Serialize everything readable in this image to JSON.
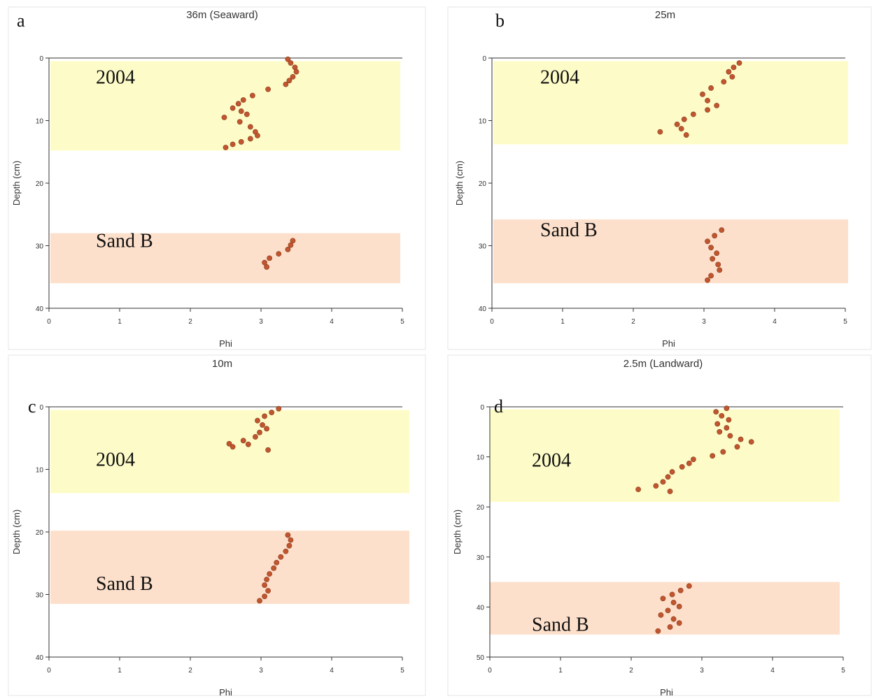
{
  "colors": {
    "band_2004": "#fdfcc8",
    "band_sand_b": "#fde0cb",
    "point_fill": "#c0562f",
    "point_stroke": "#8a3b1e"
  },
  "chart_data": [
    {
      "type": "scatter",
      "letter": "a",
      "title": "36m (Seaward)",
      "xlabel": "Phi",
      "ylabel": "Depth (cm)",
      "xlim": [
        0,
        5
      ],
      "ylim": [
        0,
        40
      ],
      "y_inverted": true,
      "xticks": [
        "0",
        "1",
        "2",
        "3",
        "4",
        "5"
      ],
      "yticks": [
        "0",
        "10",
        "20",
        "30",
        "40"
      ],
      "bands": [
        {
          "label": "2004",
          "from": 0.5,
          "to": 14.8,
          "color_key": "band_2004"
        },
        {
          "label": "Sand B",
          "from": 28.0,
          "to": 36.0,
          "color_key": "band_sand_b"
        }
      ],
      "points": [
        [
          3.38,
          0.2
        ],
        [
          3.42,
          0.8
        ],
        [
          3.48,
          1.5
        ],
        [
          3.5,
          2.2
        ],
        [
          3.45,
          3.0
        ],
        [
          3.4,
          3.6
        ],
        [
          3.35,
          4.2
        ],
        [
          3.1,
          5.0
        ],
        [
          2.88,
          6.0
        ],
        [
          2.75,
          6.7
        ],
        [
          2.68,
          7.3
        ],
        [
          2.6,
          8.0
        ],
        [
          2.72,
          8.5
        ],
        [
          2.8,
          9.0
        ],
        [
          2.48,
          9.5
        ],
        [
          2.7,
          10.2
        ],
        [
          2.85,
          11.0
        ],
        [
          2.92,
          11.8
        ],
        [
          2.95,
          12.4
        ],
        [
          2.85,
          12.9
        ],
        [
          2.72,
          13.4
        ],
        [
          2.6,
          13.8
        ],
        [
          2.5,
          14.3
        ],
        [
          3.45,
          29.2
        ],
        [
          3.42,
          29.9
        ],
        [
          3.38,
          30.6
        ],
        [
          3.25,
          31.3
        ],
        [
          3.12,
          32.0
        ],
        [
          3.05,
          32.7
        ],
        [
          3.08,
          33.4
        ]
      ]
    },
    {
      "type": "scatter",
      "letter": "b",
      "title": "25m",
      "xlabel": "Phi",
      "ylabel": "Depth (cm)",
      "xlim": [
        0,
        5
      ],
      "ylim": [
        0,
        40
      ],
      "y_inverted": true,
      "xticks": [
        "0",
        "1",
        "2",
        "3",
        "4",
        "5"
      ],
      "yticks": [
        "0",
        "10",
        "20",
        "30",
        "40"
      ],
      "bands": [
        {
          "label": "2004",
          "from": 0.5,
          "to": 13.8,
          "color_key": "band_2004"
        },
        {
          "label": "Sand B",
          "from": 25.8,
          "to": 36.0,
          "color_key": "band_sand_b"
        }
      ],
      "points": [
        [
          3.5,
          0.8
        ],
        [
          3.42,
          1.5
        ],
        [
          3.35,
          2.2
        ],
        [
          3.4,
          3.0
        ],
        [
          3.28,
          3.8
        ],
        [
          3.1,
          4.8
        ],
        [
          2.98,
          5.8
        ],
        [
          3.05,
          6.8
        ],
        [
          3.18,
          7.6
        ],
        [
          3.05,
          8.3
        ],
        [
          2.85,
          9.0
        ],
        [
          2.72,
          9.8
        ],
        [
          2.62,
          10.6
        ],
        [
          2.68,
          11.3
        ],
        [
          2.38,
          11.8
        ],
        [
          2.75,
          12.3
        ],
        [
          3.25,
          27.5
        ],
        [
          3.15,
          28.4
        ],
        [
          3.05,
          29.3
        ],
        [
          3.1,
          30.3
        ],
        [
          3.18,
          31.2
        ],
        [
          3.12,
          32.1
        ],
        [
          3.2,
          33.0
        ],
        [
          3.22,
          33.9
        ],
        [
          3.1,
          34.8
        ],
        [
          3.05,
          35.5
        ]
      ]
    },
    {
      "type": "scatter",
      "letter": "c",
      "title": "10m",
      "xlabel": "Phi",
      "ylabel": "Depth (cm)",
      "xlim": [
        0,
        5
      ],
      "ylim": [
        0,
        40
      ],
      "y_inverted": true,
      "xticks": [
        "0",
        "1",
        "2",
        "3",
        "4",
        "5"
      ],
      "yticks": [
        "0",
        "10",
        "20",
        "30",
        "40"
      ],
      "bands": [
        {
          "label": "2004",
          "from": 0.5,
          "to": 13.8,
          "color_key": "band_2004"
        },
        {
          "label": "Sand B",
          "from": 19.8,
          "to": 31.5,
          "color_key": "band_sand_b"
        }
      ],
      "points": [
        [
          3.25,
          0.3
        ],
        [
          3.15,
          0.9
        ],
        [
          3.05,
          1.5
        ],
        [
          2.95,
          2.2
        ],
        [
          3.02,
          2.9
        ],
        [
          3.08,
          3.5
        ],
        [
          2.98,
          4.1
        ],
        [
          2.92,
          4.8
        ],
        [
          2.75,
          5.4
        ],
        [
          2.55,
          5.9
        ],
        [
          2.6,
          6.4
        ],
        [
          2.82,
          6.0
        ],
        [
          3.1,
          6.9
        ],
        [
          3.38,
          20.5
        ],
        [
          3.42,
          21.3
        ],
        [
          3.4,
          22.2
        ],
        [
          3.35,
          23.1
        ],
        [
          3.28,
          24.0
        ],
        [
          3.22,
          24.9
        ],
        [
          3.18,
          25.8
        ],
        [
          3.12,
          26.7
        ],
        [
          3.08,
          27.6
        ],
        [
          3.05,
          28.5
        ],
        [
          3.1,
          29.4
        ],
        [
          3.05,
          30.3
        ],
        [
          2.98,
          31.0
        ]
      ]
    },
    {
      "type": "scatter",
      "letter": "d",
      "title": "2.5m (Landward)",
      "xlabel": "Phi",
      "ylabel": "Depth (cm)",
      "xlim": [
        0,
        5
      ],
      "ylim": [
        0,
        50
      ],
      "y_inverted": true,
      "xticks": [
        "0",
        "1",
        "2",
        "3",
        "4",
        "5"
      ],
      "yticks": [
        "0",
        "10",
        "20",
        "30",
        "40",
        "50"
      ],
      "bands": [
        {
          "label": "2004",
          "from": 0.5,
          "to": 19.0,
          "color_key": "band_2004"
        },
        {
          "label": "Sand B",
          "from": 35.0,
          "to": 45.5,
          "color_key": "band_sand_b"
        }
      ],
      "points": [
        [
          3.35,
          0.3
        ],
        [
          3.2,
          1.0
        ],
        [
          3.28,
          1.8
        ],
        [
          3.38,
          2.6
        ],
        [
          3.22,
          3.4
        ],
        [
          3.35,
          4.2
        ],
        [
          3.25,
          5.0
        ],
        [
          3.4,
          5.8
        ],
        [
          3.55,
          6.5
        ],
        [
          3.7,
          7.0
        ],
        [
          3.5,
          8.0
        ],
        [
          3.3,
          9.0
        ],
        [
          3.15,
          9.8
        ],
        [
          2.88,
          10.5
        ],
        [
          2.82,
          11.3
        ],
        [
          2.72,
          12.0
        ],
        [
          2.58,
          13.0
        ],
        [
          2.52,
          14.0
        ],
        [
          2.45,
          15.0
        ],
        [
          2.35,
          15.8
        ],
        [
          2.1,
          16.5
        ],
        [
          2.55,
          16.9
        ],
        [
          2.82,
          35.8
        ],
        [
          2.7,
          36.7
        ],
        [
          2.58,
          37.5
        ],
        [
          2.45,
          38.3
        ],
        [
          2.6,
          39.1
        ],
        [
          2.68,
          39.9
        ],
        [
          2.52,
          40.7
        ],
        [
          2.42,
          41.6
        ],
        [
          2.6,
          42.4
        ],
        [
          2.68,
          43.2
        ],
        [
          2.55,
          44.0
        ],
        [
          2.38,
          44.8
        ]
      ]
    }
  ]
}
